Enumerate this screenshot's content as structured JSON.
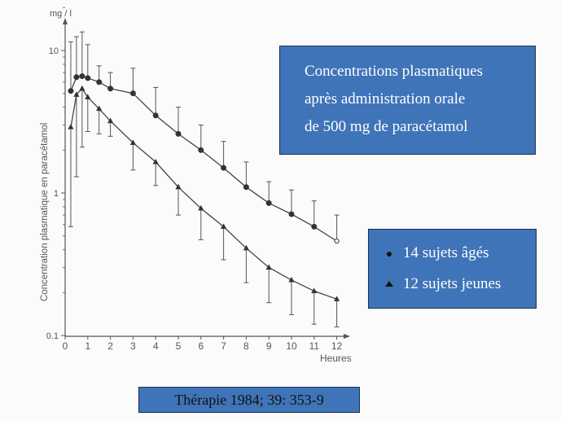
{
  "colors": {
    "box_fill": "#3f74b8",
    "box_border": "#1e2f55",
    "box_text": "#ffffff",
    "source_text": "#111111",
    "plot_ink": "#555555"
  },
  "title_box": {
    "lines": [
      "Concentrations plasmatiques",
      "après administration orale",
      "de 500 mg de paracétamol"
    ]
  },
  "legend": {
    "items": [
      {
        "marker": "circle",
        "label": "14 sujets âgés"
      },
      {
        "marker": "triangle",
        "label": "12 sujets jeunes"
      }
    ]
  },
  "source": {
    "text": "Thérapie 1984; 39: 353-9"
  },
  "chart_data": {
    "type": "line",
    "yscale": "log",
    "xlabel": "Heures",
    "ylabel": "Concentration plasmatique en paracétamol",
    "yunit": "mg / l",
    "xlim": [
      0,
      12.5
    ],
    "ylim": [
      0.1,
      20
    ],
    "xticks": [
      0,
      1,
      2,
      3,
      4,
      5,
      6,
      7,
      8,
      9,
      10,
      11,
      12
    ],
    "yticks": [
      {
        "value": 0.1,
        "label": "0.1"
      },
      {
        "value": 1,
        "label": "1"
      },
      {
        "value": 10,
        "label": "10"
      }
    ],
    "grid": false,
    "series": [
      {
        "name": "14 sujets âgés",
        "marker": "circle",
        "x": [
          0.25,
          0.5,
          0.75,
          1,
          1.5,
          2,
          3,
          4,
          5,
          6,
          7,
          8,
          9,
          10,
          11,
          12
        ],
        "y": [
          5.2,
          6.5,
          6.6,
          6.4,
          6.0,
          5.4,
          5.0,
          3.5,
          2.6,
          2.0,
          1.5,
          1.1,
          0.85,
          0.71,
          0.58,
          0.46
        ],
        "error_upper": [
          11.5,
          12.5,
          13.5,
          11.0,
          7.8,
          7.0,
          7.5,
          5.5,
          4.0,
          3.0,
          2.3,
          1.65,
          1.2,
          1.05,
          0.88,
          0.7
        ]
      },
      {
        "name": "12 sujets jeunes",
        "marker": "triangle",
        "x": [
          0.25,
          0.5,
          0.75,
          1,
          1.5,
          2,
          3,
          4,
          5,
          6,
          7,
          8,
          9,
          10,
          11,
          12
        ],
        "y": [
          2.9,
          4.9,
          5.4,
          4.7,
          3.9,
          3.2,
          2.25,
          1.65,
          1.1,
          0.78,
          0.58,
          0.41,
          0.3,
          0.245,
          0.205,
          0.18
        ],
        "error_lower": [
          0.58,
          1.3,
          2.1,
          2.7,
          2.6,
          2.5,
          1.45,
          1.13,
          0.7,
          0.47,
          0.34,
          0.235,
          0.17,
          0.14,
          0.12,
          0.115
        ]
      }
    ]
  }
}
